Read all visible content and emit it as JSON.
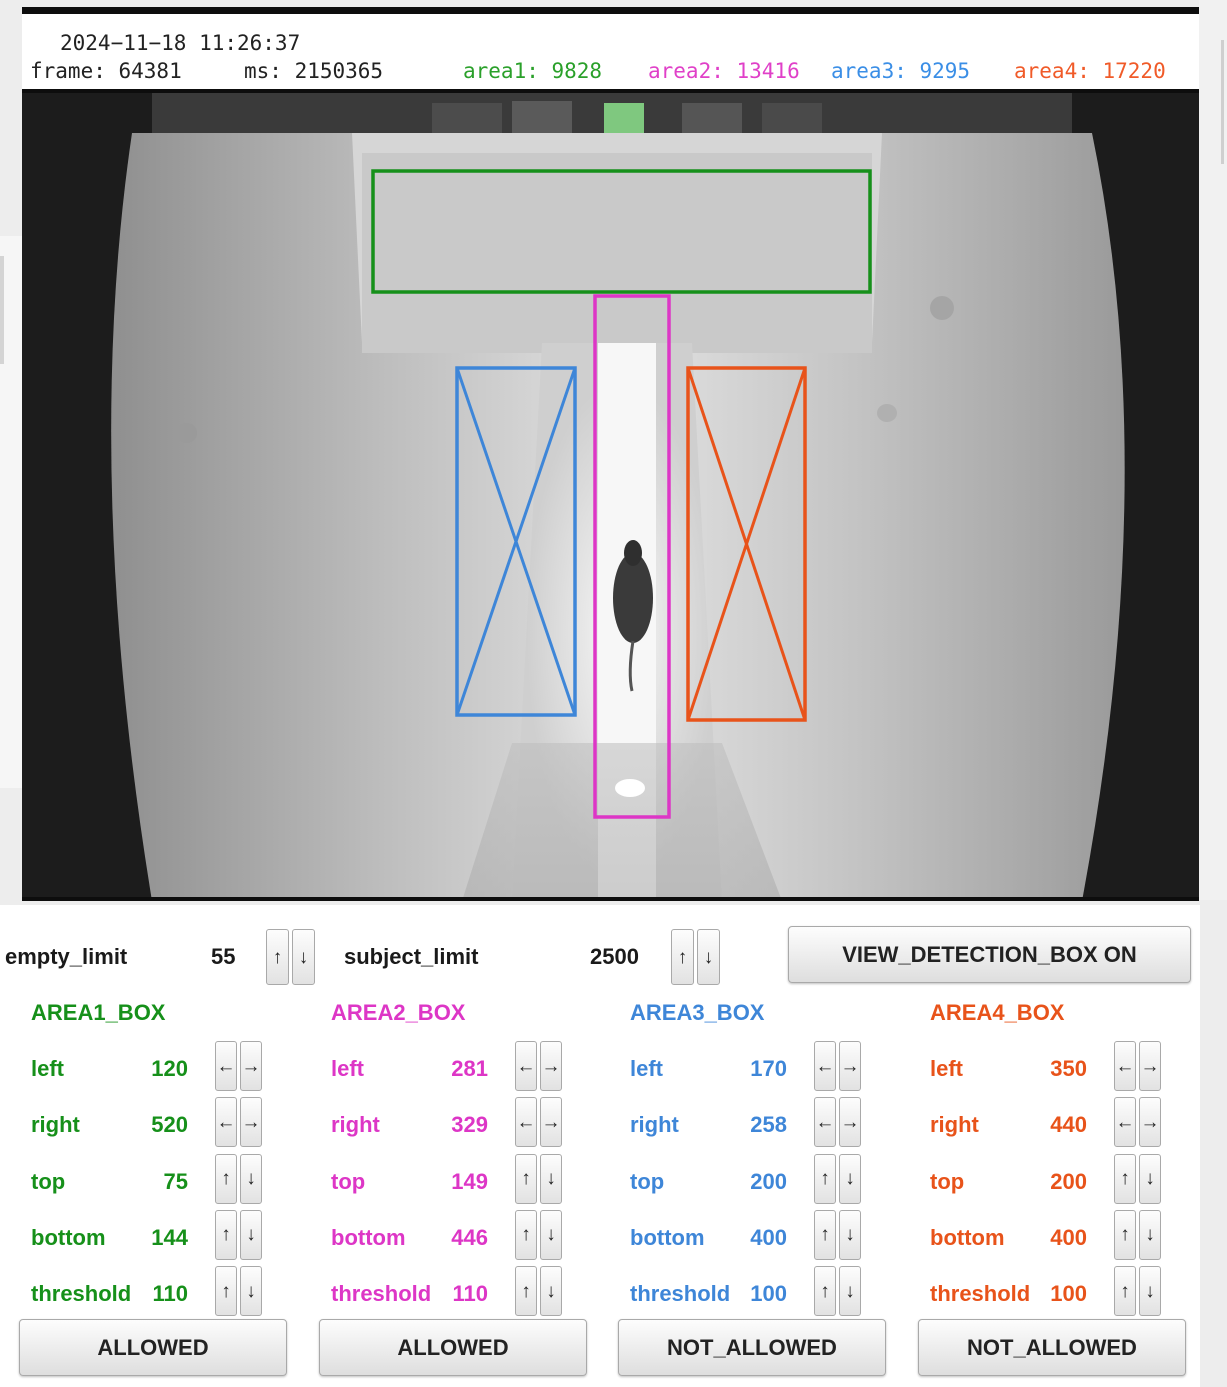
{
  "header": {
    "datetime": "2024−11−18 11:26:37",
    "frame": "frame: 64381",
    "ms": "ms: 2150365",
    "area_counts": [
      {
        "label": "area1: 9828",
        "color": "#2aa02a"
      },
      {
        "label": "area2: 13416",
        "color": "#e040c8"
      },
      {
        "label": "area3: 9295",
        "color": "#3a8ee6"
      },
      {
        "label": "area4: 17220",
        "color": "#f05a28"
      }
    ]
  },
  "colors": {
    "area1": "#16901a",
    "area2": "#dd36c6",
    "area3": "#3e86d8",
    "area4": "#e8531a"
  },
  "global": {
    "empty_limit_label": "empty_limit",
    "empty_limit_value": "55",
    "subject_limit_label": "subject_limit",
    "subject_limit_value": "2500",
    "view_button_label": "VIEW_DETECTION_BOX ON",
    "up_arrow": "↑",
    "down_arrow": "↓",
    "left_arrow": "←",
    "right_arrow": "→"
  },
  "areas": [
    {
      "title": "AREA1_BOX",
      "rows": [
        {
          "label": "left",
          "value": "120"
        },
        {
          "label": "right",
          "value": "520"
        },
        {
          "label": "top",
          "value": "75"
        },
        {
          "label": "bottom",
          "value": "144"
        },
        {
          "label": "threshold",
          "value": "110"
        }
      ],
      "status": "ALLOWED"
    },
    {
      "title": "AREA2_BOX",
      "rows": [
        {
          "label": "left",
          "value": "281"
        },
        {
          "label": "right",
          "value": "329"
        },
        {
          "label": "top",
          "value": "149"
        },
        {
          "label": "bottom",
          "value": "446"
        },
        {
          "label": "threshold",
          "value": "110"
        }
      ],
      "status": "ALLOWED"
    },
    {
      "title": "AREA3_BOX",
      "rows": [
        {
          "label": "left",
          "value": "170"
        },
        {
          "label": "right",
          "value": "258"
        },
        {
          "label": "top",
          "value": "200"
        },
        {
          "label": "bottom",
          "value": "400"
        },
        {
          "label": "threshold",
          "value": "100"
        }
      ],
      "status": "NOT_ALLOWED"
    },
    {
      "title": "AREA4_BOX",
      "rows": [
        {
          "label": "left",
          "value": "350"
        },
        {
          "label": "right",
          "value": "440"
        },
        {
          "label": "top",
          "value": "200"
        },
        {
          "label": "bottom",
          "value": "400"
        },
        {
          "label": "threshold",
          "value": "100"
        }
      ],
      "status": "NOT_ALLOWED"
    }
  ]
}
